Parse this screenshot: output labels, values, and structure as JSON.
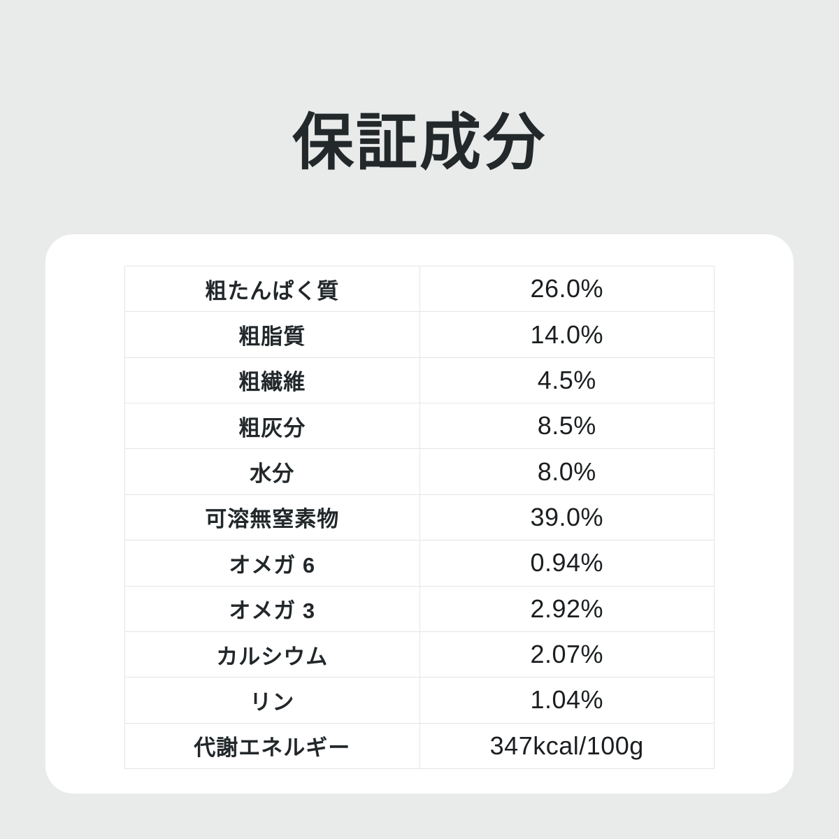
{
  "header": {
    "title": "保証成分"
  },
  "colors": {
    "background": "#e8ebe9",
    "card": "#ffffff",
    "table_border": "#e3e5e4",
    "title_text": "#23282a",
    "label_text": "#22272a",
    "value_text": "#1b1e20"
  },
  "table": {
    "rows": [
      {
        "label": "粗たんぱく質",
        "value": "26.0%"
      },
      {
        "label": "粗脂質",
        "value": "14.0%"
      },
      {
        "label": "粗繊維",
        "value": "4.5%"
      },
      {
        "label": "粗灰分",
        "value": "8.5%"
      },
      {
        "label": "水分",
        "value": "8.0%"
      },
      {
        "label": "可溶無窒素物",
        "value": "39.0%"
      },
      {
        "label": "オメガ 6",
        "value": "0.94%"
      },
      {
        "label": "オメガ 3",
        "value": "2.92%"
      },
      {
        "label": "カルシウム",
        "value": "2.07%"
      },
      {
        "label": "リン",
        "value": "1.04%"
      },
      {
        "label": "代謝エネルギー",
        "value": "347kcal/100g"
      }
    ]
  },
  "chart_data": {
    "type": "table",
    "title": "保証成分",
    "categories": [
      "粗たんぱく質",
      "粗脂質",
      "粗繊維",
      "粗灰分",
      "水分",
      "可溶無窒素物",
      "オメガ 6",
      "オメガ 3",
      "カルシウム",
      "リン",
      "代謝エネルギー"
    ],
    "values": [
      "26.0%",
      "14.0%",
      "4.5%",
      "8.5%",
      "8.0%",
      "39.0%",
      "0.94%",
      "2.92%",
      "2.07%",
      "1.04%",
      "347kcal/100g"
    ],
    "values_numeric_percent": [
      26.0,
      14.0,
      4.5,
      8.5,
      8.0,
      39.0,
      0.94,
      2.92,
      2.07,
      1.04
    ],
    "metabolic_energy_kcal_per_100g": 347,
    "layout": "two-column bordered grid, labels left column, values right column, all cells center-aligned"
  }
}
